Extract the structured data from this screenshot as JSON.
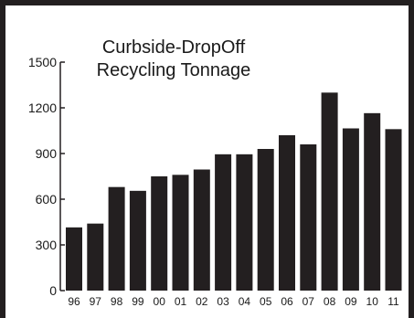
{
  "chart_data": {
    "type": "bar",
    "title_lines": [
      "Curbside-DropOff",
      "Recycling Tonnage"
    ],
    "xlabel": "",
    "ylabel": "",
    "categories": [
      "96",
      "97",
      "98",
      "99",
      "00",
      "01",
      "02",
      "03",
      "04",
      "05",
      "06",
      "07",
      "08",
      "09",
      "10",
      "11"
    ],
    "values": [
      415,
      440,
      680,
      655,
      750,
      760,
      795,
      895,
      895,
      930,
      1020,
      960,
      1300,
      1065,
      1165,
      1060
    ],
    "ylim": [
      0,
      1500
    ],
    "yticks": [
      0,
      300,
      600,
      900,
      1200,
      1500
    ],
    "grid": false,
    "legend": "none",
    "colors": {
      "bar": "#231f20",
      "frame": "#231f20",
      "axis": "#231f20",
      "text": "#1a1a1a",
      "background": "#ffffff"
    }
  }
}
